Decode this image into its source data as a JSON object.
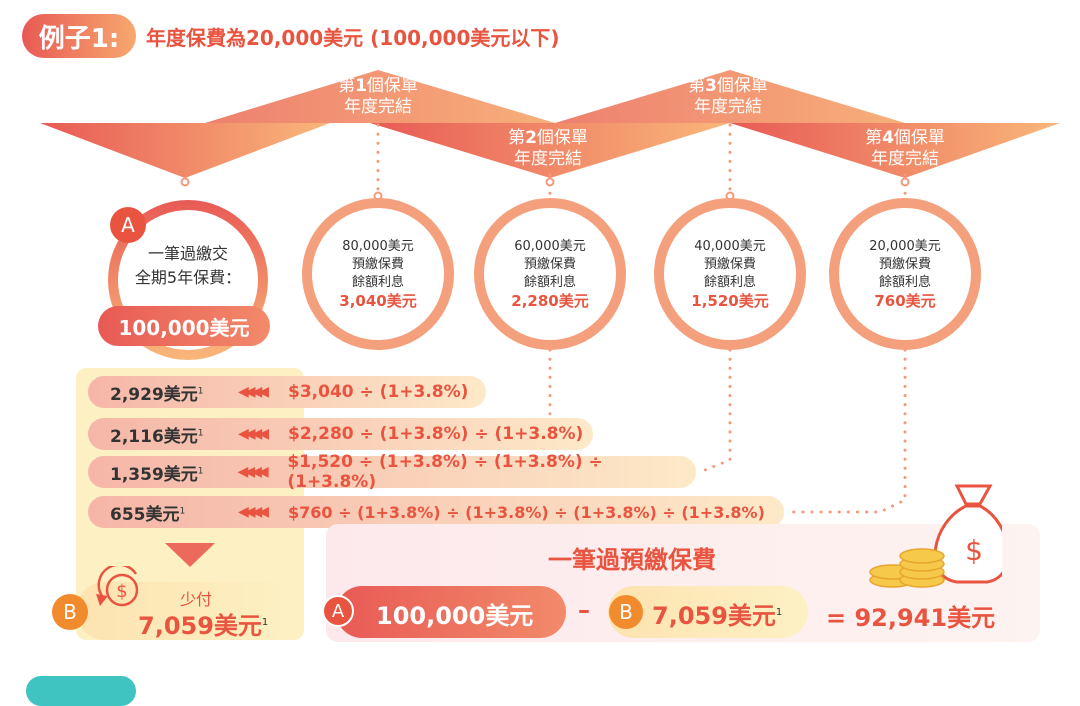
{
  "header": {
    "example_label": "例子1:",
    "subtitle": "年度保費為20,000美元 (100,000美元以下)"
  },
  "milestones": [
    {
      "label_prefix": "第",
      "num": "1",
      "label_suffix": "個保單",
      "label2": "年度完結"
    },
    {
      "label_prefix": "第",
      "num": "2",
      "label_suffix": "個保單",
      "label2": "年度完結"
    },
    {
      "label_prefix": "第",
      "num": "3",
      "label_suffix": "個保單",
      "label2": "年度完結"
    },
    {
      "label_prefix": "第",
      "num": "4",
      "label_suffix": "個保單",
      "label2": "年度完結"
    }
  ],
  "lump_sum": {
    "letter": "A",
    "line1": "一筆過繳交",
    "line2": "全期5年保費：",
    "amount": "100,000美元"
  },
  "circles": [
    {
      "line1": "80,000美元",
      "line2": "預繳保費",
      "line3": "餘額利息",
      "amount": "3,040美元"
    },
    {
      "line1": "60,000美元",
      "line2": "預繳保費",
      "line3": "餘額利息",
      "amount": "2,280美元"
    },
    {
      "line1": "40,000美元",
      "line2": "預繳保費",
      "line3": "餘額利息",
      "amount": "1,520美元"
    },
    {
      "line1": "20,000美元",
      "line2": "預繳保費",
      "line3": "餘額利息",
      "amount": "760美元"
    }
  ],
  "rows": [
    {
      "value": "2,929美元",
      "sup": "1",
      "expr": "$3,040 ÷ (1+3.8%)"
    },
    {
      "value": "2,116美元",
      "sup": "1",
      "expr": "$2,280 ÷ (1+3.8%) ÷ (1+3.8%)"
    },
    {
      "value": "1,359美元",
      "sup": "1",
      "expr": "$1,520 ÷ (1+3.8%) ÷ (1+3.8%) ÷ (1+3.8%)"
    },
    {
      "value": "655美元",
      "sup": "1",
      "expr": "$760 ÷ (1+3.8%) ÷ (1+3.8%) ÷ (1+3.8%) ÷ (1+3.8%)"
    }
  ],
  "saving": {
    "letter": "B",
    "label": "少付",
    "amount": "7,059美元",
    "sup": "1"
  },
  "summary": {
    "title": "一筆過預繳保費",
    "a_letter": "A",
    "a_amount": "100,000美元",
    "minus": "–",
    "b_letter": "B",
    "b_amount": "7,059美元",
    "b_sup": "1",
    "result": "= 92,941美元"
  },
  "colors": {
    "accent": "#e8543f",
    "peach": "#f7a86e",
    "cream": "#fdf1c4"
  }
}
